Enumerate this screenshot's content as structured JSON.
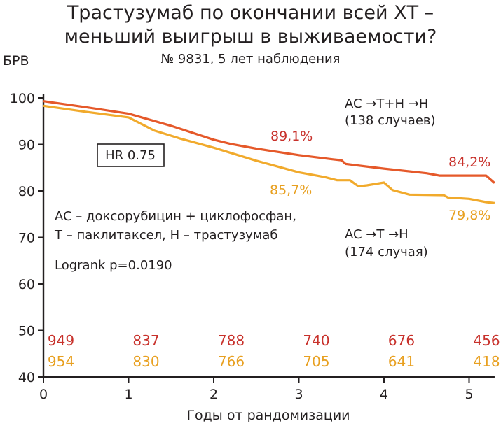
{
  "chart_data": {
    "type": "line",
    "title_line1": "Трастузумаб по окончании всей ХТ –",
    "title_line2": "меньший выигрыш в выживаемости?",
    "subtitle": "№ 9831, 5 лет наблюдения",
    "ylabel": "БРВ",
    "xlabel": "Годы от рандомизации",
    "xlim": [
      0,
      5.3
    ],
    "ylim": [
      40,
      100
    ],
    "x_ticks": [
      "0",
      "1",
      "2",
      "3",
      "4",
      "5"
    ],
    "y_ticks": [
      "40",
      "50",
      "60",
      "70",
      "80",
      "90",
      "100"
    ],
    "grid": false,
    "colors": {
      "series1": "#e5592a",
      "series2": "#f1aa2c",
      "red_text": "#c8312b",
      "orange_text": "#e8a020"
    },
    "series": [
      {
        "name": "AC →T+H →H",
        "name_line2": "(138 случаев)",
        "x": [
          0,
          0.5,
          1.0,
          1.5,
          2.0,
          2.2,
          2.5,
          3.0,
          3.4,
          3.5,
          3.55,
          4.0,
          4.5,
          4.65,
          5.0,
          5.2,
          5.3
        ],
        "y": [
          99.3,
          98.0,
          96.6,
          94.0,
          91.0,
          90.1,
          89.1,
          87.7,
          86.8,
          86.6,
          85.8,
          84.8,
          83.8,
          83.3,
          83.3,
          83.3,
          81.7
        ]
      },
      {
        "name": "AC →T →H",
        "name_line2": "(174 случая)",
        "x": [
          0,
          0.5,
          1.0,
          1.3,
          1.6,
          2.0,
          2.5,
          3.0,
          3.3,
          3.45,
          3.6,
          3.7,
          3.8,
          4.0,
          4.1,
          4.3,
          4.7,
          4.75,
          5.0,
          5.2,
          5.3
        ],
        "y": [
          98.3,
          97.0,
          95.8,
          93.0,
          91.3,
          89.3,
          86.5,
          84.0,
          83.0,
          82.3,
          82.3,
          81.0,
          81.2,
          81.8,
          80.2,
          79.2,
          79.1,
          78.6,
          78.3,
          77.6,
          77.4
        ]
      }
    ],
    "annotations": {
      "red_89": "89,1%",
      "red_84": "84,2%",
      "orange_85": "85,7%",
      "orange_79": "79,8%",
      "hr": "HR 0.75",
      "abbrev_line1": "AC – доксорубицин + циклофосфан,",
      "abbrev_line2": "T – паклитаксел, H – трастузумаб",
      "logrank": "Logrank p=0.0190"
    },
    "at_risk": {
      "series1": [
        "949",
        "837",
        "788",
        "740",
        "676",
        "456"
      ],
      "series2": [
        "954",
        "830",
        "766",
        "705",
        "641",
        "418"
      ]
    }
  }
}
